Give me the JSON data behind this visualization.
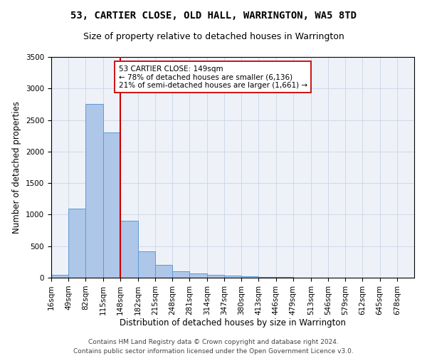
{
  "title": "53, CARTIER CLOSE, OLD HALL, WARRINGTON, WA5 8TD",
  "subtitle": "Size of property relative to detached houses in Warrington",
  "xlabel": "Distribution of detached houses by size in Warrington",
  "ylabel": "Number of detached properties",
  "bin_labels": [
    "16sqm",
    "49sqm",
    "82sqm",
    "115sqm",
    "148sqm",
    "182sqm",
    "215sqm",
    "248sqm",
    "281sqm",
    "314sqm",
    "347sqm",
    "380sqm",
    "413sqm",
    "446sqm",
    "479sqm",
    "513sqm",
    "546sqm",
    "579sqm",
    "612sqm",
    "645sqm",
    "678sqm"
  ],
  "bar_values": [
    50,
    1100,
    2750,
    2300,
    900,
    420,
    200,
    100,
    70,
    50,
    30,
    20,
    12,
    8,
    5,
    3,
    2,
    1,
    1,
    0,
    0
  ],
  "bin_edges": [
    16,
    49,
    82,
    115,
    148,
    182,
    215,
    248,
    281,
    314,
    347,
    380,
    413,
    446,
    479,
    513,
    546,
    579,
    612,
    645,
    678,
    711
  ],
  "bar_color": "#aec6e8",
  "bar_edge_color": "#5b9bd5",
  "property_line_x": 148,
  "property_line_color": "#cc0000",
  "annotation_line1": "53 CARTIER CLOSE: 149sqm",
  "annotation_line2": "← 78% of detached houses are smaller (6,136)",
  "annotation_line3": "21% of semi-detached houses are larger (1,661) →",
  "annotation_box_color": "#ffffff",
  "annotation_box_edge_color": "#cc0000",
  "ylim": [
    0,
    3500
  ],
  "yticks": [
    0,
    500,
    1000,
    1500,
    2000,
    2500,
    3000,
    3500
  ],
  "grid_color": "#d0d8e8",
  "bg_color": "#eef2f8",
  "footer_line1": "Contains HM Land Registry data © Crown copyright and database right 2024.",
  "footer_line2": "Contains public sector information licensed under the Open Government Licence v3.0.",
  "title_fontsize": 10,
  "subtitle_fontsize": 9,
  "axis_label_fontsize": 8.5,
  "tick_fontsize": 7.5,
  "annotation_fontsize": 7.5,
  "footer_fontsize": 6.5
}
